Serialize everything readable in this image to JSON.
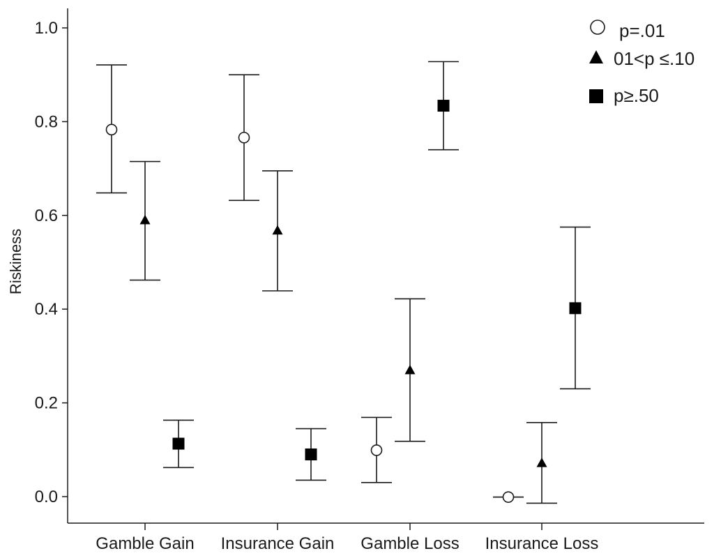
{
  "chart_data": {
    "type": "scatter",
    "subtype": "error-bar",
    "title": "",
    "xlabel": "",
    "ylabel": "Riskiness",
    "ylim": [
      -0.06,
      1.04
    ],
    "yticks": [
      "0.0",
      "0.2",
      "0.4",
      "0.6",
      "0.8",
      "1.0"
    ],
    "grid": false,
    "legend_position": "top-right",
    "categories": [
      "Gamble Gain",
      "Insurance Gain",
      "Gamble Loss",
      "Insurance Loss"
    ],
    "series": [
      {
        "name": "p=.01",
        "marker": "circle-open",
        "values": [
          0.783,
          0.766,
          0.099,
          -0.001
        ],
        "lower": [
          0.648,
          0.632,
          0.03,
          -0.001
        ],
        "upper": [
          0.921,
          0.9,
          0.169,
          -0.001
        ]
      },
      {
        "name": "01<p ≤.10",
        "marker": "triangle",
        "values": [
          0.59,
          0.568,
          0.27,
          0.072
        ],
        "lower": [
          0.462,
          0.439,
          0.118,
          -0.014
        ],
        "upper": [
          0.715,
          0.695,
          0.422,
          0.158
        ]
      },
      {
        "name": "p≥.50",
        "marker": "square",
        "values": [
          0.113,
          0.09,
          0.834,
          0.402
        ],
        "lower": [
          0.062,
          0.035,
          0.74,
          0.23
        ],
        "upper": [
          0.163,
          0.145,
          0.928,
          0.575
        ]
      }
    ]
  }
}
